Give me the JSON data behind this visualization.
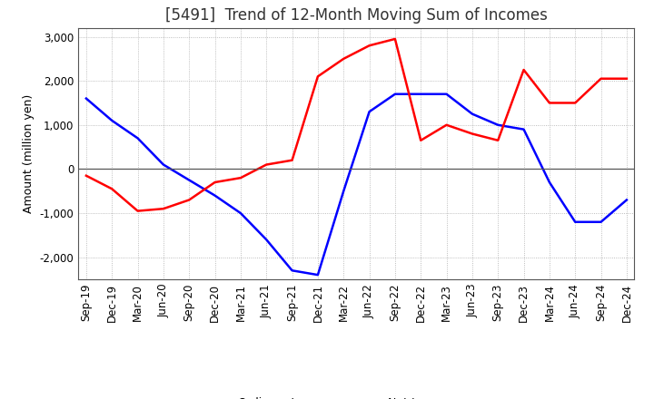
{
  "title": "[5491]  Trend of 12-Month Moving Sum of Incomes",
  "ylabel": "Amount (million yen)",
  "ylim": [
    -2500,
    3200
  ],
  "yticks": [
    -2000,
    -1000,
    0,
    1000,
    2000,
    3000
  ],
  "x_labels": [
    "Sep-19",
    "Dec-19",
    "Mar-20",
    "Jun-20",
    "Sep-20",
    "Dec-20",
    "Mar-21",
    "Jun-21",
    "Sep-21",
    "Dec-21",
    "Mar-22",
    "Jun-22",
    "Sep-22",
    "Dec-22",
    "Mar-23",
    "Jun-23",
    "Sep-23",
    "Dec-23",
    "Mar-24",
    "Jun-24",
    "Sep-24",
    "Dec-24"
  ],
  "ordinary_income": [
    1600,
    1100,
    700,
    100,
    -250,
    -600,
    -1000,
    -1600,
    -2300,
    -2400,
    -500,
    1300,
    1700,
    1700,
    1700,
    1250,
    1000,
    900,
    -300,
    -1200,
    -1200,
    -700
  ],
  "net_income": [
    -150,
    -450,
    -950,
    -900,
    -700,
    -300,
    -200,
    100,
    200,
    2100,
    2500,
    2800,
    2950,
    650,
    1000,
    800,
    650,
    2250,
    1500,
    1500,
    2050,
    2050
  ],
  "ordinary_color": "#0000ff",
  "net_color": "#ff0000",
  "grid_color": "#aaaaaa",
  "background_color": "#ffffff",
  "title_fontsize": 12,
  "label_fontsize": 9,
  "tick_fontsize": 8.5,
  "figsize": [
    7.2,
    4.4
  ],
  "dpi": 100
}
